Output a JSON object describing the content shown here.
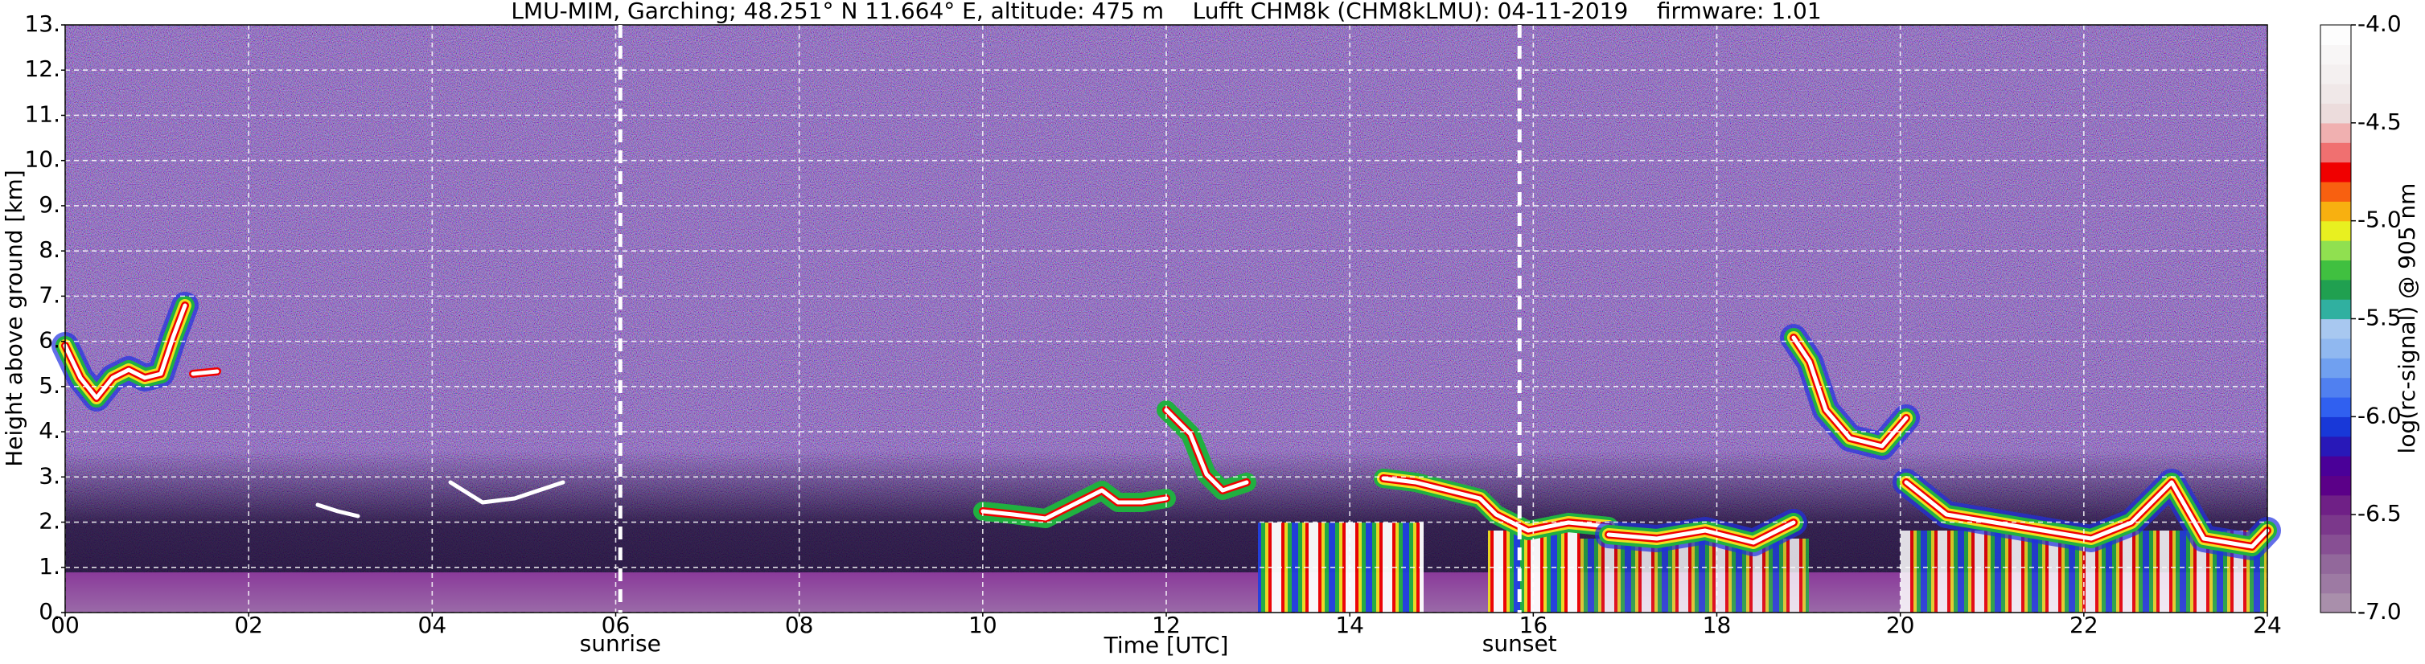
{
  "chart_data": {
    "type": "heatmap",
    "title": "LMU-MIM, Garching; 48.251° N 11.664° E, altitude: 475 m    Lufft CHM8k (CHM8kLMU): 04-11-2019    firmware: 1.01",
    "x_label": "Time [UTC]",
    "y_label": "Height above ground [km]",
    "xlim": [
      0,
      24
    ],
    "xticks": [
      {
        "value": 0,
        "label": "00"
      },
      {
        "value": 2,
        "label": "02"
      },
      {
        "value": 4,
        "label": "04"
      },
      {
        "value": 6,
        "label": "06"
      },
      {
        "value": 8,
        "label": "08"
      },
      10,
      12,
      14,
      16,
      18,
      20,
      22,
      24
    ],
    "ylim": [
      0,
      13
    ],
    "yticks": [
      {
        "value": 0,
        "label": "0."
      },
      {
        "value": 1,
        "label": "1."
      },
      {
        "value": 2,
        "label": "2."
      },
      {
        "value": 3,
        "label": "3."
      },
      {
        "value": 4,
        "label": "4."
      },
      {
        "value": 5,
        "label": "5."
      },
      {
        "value": 6,
        "label": "6."
      },
      {
        "value": 7,
        "label": "7."
      },
      {
        "value": 8,
        "label": "8."
      },
      {
        "value": 9,
        "label": "9."
      },
      {
        "value": 10,
        "label": "10."
      },
      {
        "value": 11,
        "label": "11."
      },
      {
        "value": 12,
        "label": "12."
      },
      {
        "value": 13,
        "label": "13."
      }
    ],
    "grid": true,
    "annotations": [
      {
        "label": "sunrise",
        "x": 6.05
      },
      {
        "label": "sunset",
        "x": 15.85
      }
    ],
    "colorbar": {
      "label": "log(rc-signal) @ 905 nm",
      "lim": [
        -7,
        -4
      ],
      "ticks": [
        {
          "value": -4,
          "label": "-4.0"
        },
        -4.5,
        {
          "value": -5,
          "label": "-5.0"
        },
        -5.5,
        {
          "value": -6,
          "label": "-6.0"
        },
        -6.5,
        {
          "value": -7,
          "label": "-7.0"
        }
      ],
      "colors": [
        "#a98fab",
        "#9d7aa3",
        "#92689b",
        "#874f93",
        "#7b388b",
        "#6f2086",
        "#5b0088",
        "#4a0098",
        "#2818b8",
        "#1838d8",
        "#3060f0",
        "#5080f0",
        "#70a0f0",
        "#90b8f0",
        "#a8c8f0",
        "#30b0a0",
        "#20a050",
        "#40c040",
        "#90e050",
        "#e8f020",
        "#f8b010",
        "#f86010",
        "#f00000",
        "#f07070",
        "#f0b0b0",
        "#ecdcdc",
        "#f0e8e8",
        "#f4f0f0",
        "#f8f6f6",
        "#fdfdfd"
      ]
    }
  }
}
